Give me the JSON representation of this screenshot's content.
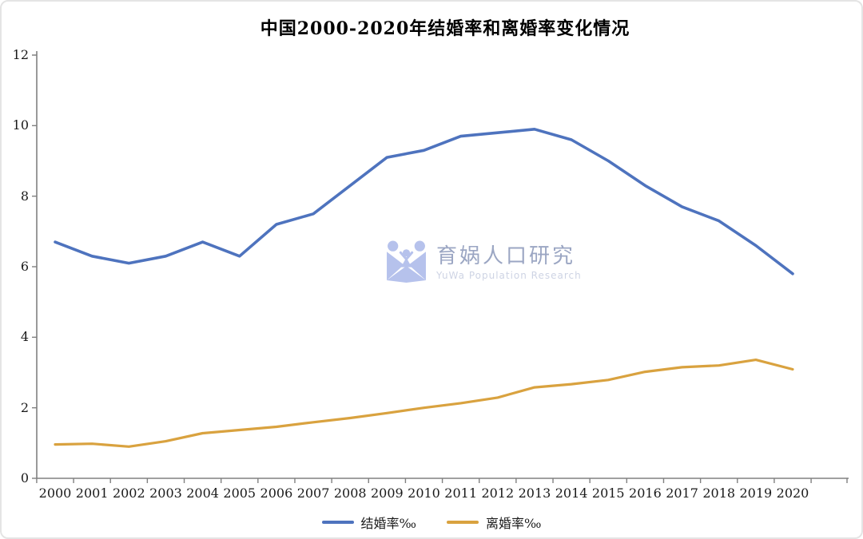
{
  "page": {
    "title": "中国2000-2020年结婚率和离婚率变化情况"
  },
  "watermark": {
    "logo_icon": "yuwa-logo-icon",
    "name_cn": "育娲人口研究",
    "name_en": "YuWa Population Research"
  },
  "colors": {
    "marriage_line": "#4e73be",
    "divorce_line": "#d9a23f",
    "axis": "#808080",
    "watermark_blue": "#b3bfec"
  },
  "chart_data": {
    "type": "line",
    "title": "中国2000-2020年结婚率和离婚率变化情况",
    "categories": [
      "2000",
      "2001",
      "2002",
      "2003",
      "2004",
      "2005",
      "2006",
      "2007",
      "2008",
      "2009",
      "2010",
      "2011",
      "2012",
      "2013",
      "2014",
      "2015",
      "2016",
      "2017",
      "2018",
      "2019",
      "2020"
    ],
    "series": [
      {
        "name": "结婚率‰",
        "color": "#4e73be",
        "values": [
          6.7,
          6.3,
          6.1,
          6.3,
          6.7,
          6.3,
          7.2,
          7.5,
          8.3,
          9.1,
          9.3,
          9.7,
          9.8,
          9.9,
          9.6,
          9.0,
          8.3,
          7.7,
          7.3,
          6.6,
          5.8
        ]
      },
      {
        "name": "离婚率‰",
        "color": "#d9a23f",
        "values": [
          0.96,
          0.98,
          0.9,
          1.05,
          1.28,
          1.37,
          1.46,
          1.59,
          1.71,
          1.85,
          2.0,
          2.13,
          2.29,
          2.58,
          2.67,
          2.79,
          3.02,
          3.15,
          3.2,
          3.36,
          3.09
        ]
      }
    ],
    "xlabel": "",
    "ylabel": "",
    "yticks": [
      0,
      2,
      4,
      6,
      8,
      10,
      12
    ],
    "ylim": [
      0,
      12
    ],
    "grid": false,
    "legend_position": "bottom"
  }
}
